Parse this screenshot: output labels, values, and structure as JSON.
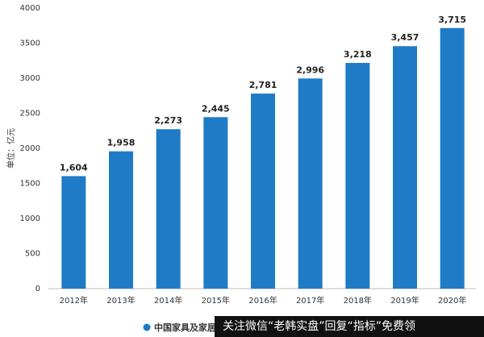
{
  "chart_data": {
    "type": "bar",
    "y_label": "单位：亿元",
    "categories": [
      "2012年",
      "2013年",
      "2014年",
      "2015年",
      "2016年",
      "2017年",
      "2018年",
      "2019年",
      "2020年"
    ],
    "series": [
      {
        "name": "中国家具及家居",
        "color": "#1f7bc6",
        "values": [
          1604,
          1958,
          2273,
          2445,
          2781,
          2996,
          3218,
          3457,
          3715
        ],
        "value_labels": [
          "1,604",
          "1,958",
          "2,273",
          "2,445",
          "2,781",
          "2,996",
          "3,218",
          "3,457",
          "3,715"
        ]
      }
    ],
    "ylim": [
      0,
      4000
    ],
    "yticks": [
      0,
      500,
      1000,
      1500,
      2000,
      2500,
      3000,
      3500,
      4000
    ],
    "grid": false
  },
  "banner": "关注微信“老韩实盘”回复“指标”免费领"
}
